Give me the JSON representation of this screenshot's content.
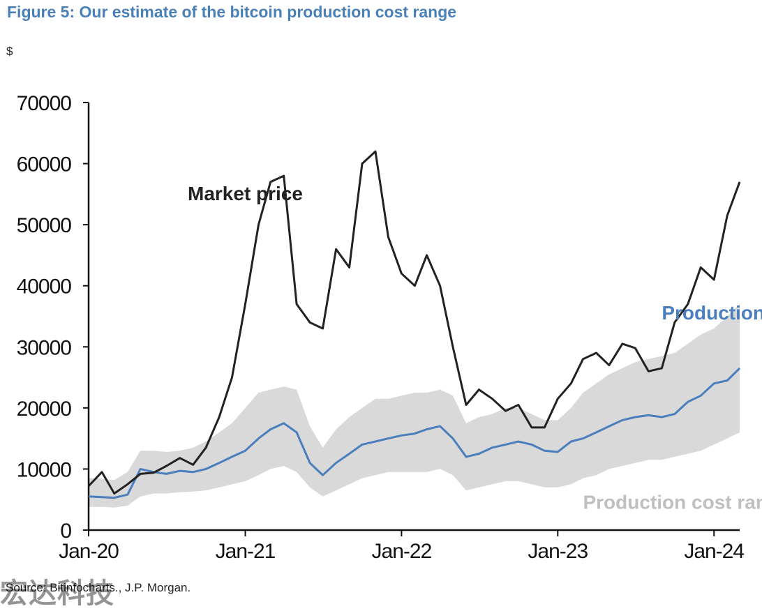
{
  "header": {
    "title": "Figure 5: Our estimate of the bitcoin production cost range",
    "unit": "$"
  },
  "footer": {
    "source": "Source: Bitinfocharts., J.P. Morgan.",
    "watermark": "宏达科技"
  },
  "colors": {
    "title": "#4a80b8",
    "market_price": "#222222",
    "production_cost": "#4a7ebd",
    "production_cost_range": "#d9d9d9"
  },
  "chart_data": {
    "type": "line",
    "title": "Figure 5: Our estimate of the bitcoin production cost range",
    "ylabel": "$",
    "ylim": [
      0,
      70000
    ],
    "yticks": [
      "0",
      "10000",
      "20000",
      "30000",
      "40000",
      "50000",
      "60000",
      "70000"
    ],
    "xlim": [
      "2020-01-01",
      "2024-03-01"
    ],
    "xticks": [
      {
        "label": "Jan-20",
        "date": "2020-01-01"
      },
      {
        "label": "Jan-21",
        "date": "2021-01-01"
      },
      {
        "label": "Jan-22",
        "date": "2022-01-01"
      },
      {
        "label": "Jan-23",
        "date": "2023-01-01"
      },
      {
        "label": "Jan-24",
        "date": "2024-01-01"
      }
    ],
    "grid": false,
    "series": [
      {
        "name": "Market price",
        "x": [
          "2020-01",
          "2020-02",
          "2020-03",
          "2020-04",
          "2020-05",
          "2020-06",
          "2020-07",
          "2020-08",
          "2020-09",
          "2020-10",
          "2020-11",
          "2020-12",
          "2021-01",
          "2021-02",
          "2021-03",
          "2021-04",
          "2021-05",
          "2021-06",
          "2021-07",
          "2021-08",
          "2021-09",
          "2021-10",
          "2021-11",
          "2021-12",
          "2022-01",
          "2022-02",
          "2022-03",
          "2022-04",
          "2022-05",
          "2022-06",
          "2022-07",
          "2022-08",
          "2022-09",
          "2022-10",
          "2022-11",
          "2022-12",
          "2023-01",
          "2023-02",
          "2023-03",
          "2023-04",
          "2023-05",
          "2023-06",
          "2023-07",
          "2023-08",
          "2023-09",
          "2023-10",
          "2023-11",
          "2023-12",
          "2024-01",
          "2024-02",
          "2024-03"
        ],
        "values": [
          7200,
          9500,
          6000,
          7500,
          9200,
          9400,
          10500,
          11800,
          10700,
          13500,
          18500,
          25000,
          37000,
          50000,
          57000,
          58000,
          37000,
          34000,
          33000,
          46000,
          43000,
          60000,
          62000,
          48000,
          42000,
          40000,
          45000,
          40000,
          30000,
          20500,
          23000,
          21500,
          19500,
          20500,
          16800,
          16800,
          21500,
          24000,
          28000,
          29000,
          27000,
          30500,
          29800,
          26000,
          26500,
          34000,
          37000,
          43000,
          41000,
          51500,
          57000
        ]
      },
      {
        "name": "Production cost",
        "x": [
          "2020-01",
          "2020-02",
          "2020-03",
          "2020-04",
          "2020-05",
          "2020-06",
          "2020-07",
          "2020-08",
          "2020-09",
          "2020-10",
          "2020-11",
          "2020-12",
          "2021-01",
          "2021-02",
          "2021-03",
          "2021-04",
          "2021-05",
          "2021-06",
          "2021-07",
          "2021-08",
          "2021-09",
          "2021-10",
          "2021-11",
          "2021-12",
          "2022-01",
          "2022-02",
          "2022-03",
          "2022-04",
          "2022-05",
          "2022-06",
          "2022-07",
          "2022-08",
          "2022-09",
          "2022-10",
          "2022-11",
          "2022-12",
          "2023-01",
          "2023-02",
          "2023-03",
          "2023-04",
          "2023-05",
          "2023-06",
          "2023-07",
          "2023-08",
          "2023-09",
          "2023-10",
          "2023-11",
          "2023-12",
          "2024-01",
          "2024-02",
          "2024-03"
        ],
        "values": [
          5500,
          5400,
          5300,
          5800,
          10000,
          9500,
          9200,
          9700,
          9500,
          10000,
          11000,
          12000,
          13000,
          15000,
          16500,
          17500,
          16000,
          11000,
          9000,
          11000,
          12500,
          14000,
          14500,
          15000,
          15500,
          15800,
          16500,
          17000,
          15000,
          12000,
          12500,
          13500,
          14000,
          14500,
          14000,
          13000,
          12800,
          14500,
          15000,
          16000,
          17000,
          18000,
          18500,
          18800,
          18500,
          19000,
          21000,
          22000,
          24000,
          24500,
          26500
        ]
      },
      {
        "name": "Production cost range",
        "type": "area",
        "x": [
          "2020-01",
          "2020-02",
          "2020-03",
          "2020-04",
          "2020-05",
          "2020-06",
          "2020-07",
          "2020-08",
          "2020-09",
          "2020-10",
          "2020-11",
          "2020-12",
          "2021-01",
          "2021-02",
          "2021-03",
          "2021-04",
          "2021-05",
          "2021-06",
          "2021-07",
          "2021-08",
          "2021-09",
          "2021-10",
          "2021-11",
          "2021-12",
          "2022-01",
          "2022-02",
          "2022-03",
          "2022-04",
          "2022-05",
          "2022-06",
          "2022-07",
          "2022-08",
          "2022-09",
          "2022-10",
          "2022-11",
          "2022-12",
          "2023-01",
          "2023-02",
          "2023-03",
          "2023-04",
          "2023-05",
          "2023-06",
          "2023-07",
          "2023-08",
          "2023-09",
          "2023-10",
          "2023-11",
          "2023-12",
          "2024-01",
          "2024-02",
          "2024-03"
        ],
        "low": [
          3800,
          3800,
          3700,
          4000,
          5500,
          6000,
          6000,
          6200,
          6300,
          6500,
          7000,
          7500,
          8000,
          9000,
          10000,
          10500,
          9500,
          7000,
          5500,
          6500,
          7500,
          8500,
          9000,
          9500,
          9500,
          9500,
          9500,
          10000,
          9000,
          6500,
          7000,
          7500,
          8000,
          8000,
          7500,
          7000,
          7000,
          7500,
          8500,
          9000,
          10000,
          10500,
          11000,
          11500,
          11500,
          12000,
          12500,
          13000,
          14000,
          15000,
          16000
        ],
        "high": [
          8500,
          8400,
          8200,
          9500,
          13000,
          13000,
          12800,
          13000,
          13500,
          14500,
          16000,
          17500,
          20000,
          22500,
          23000,
          23500,
          23000,
          17000,
          13500,
          16500,
          18500,
          20000,
          21500,
          21500,
          22000,
          22500,
          22500,
          23000,
          22000,
          17500,
          18500,
          19000,
          20000,
          20000,
          19000,
          18000,
          18000,
          20000,
          22500,
          24000,
          25500,
          26500,
          27500,
          28000,
          28500,
          29000,
          30500,
          32000,
          33000,
          35000,
          37000
        ]
      }
    ],
    "annotations": [
      {
        "text": "Market price",
        "anchor": "2021-01",
        "value": 54000
      },
      {
        "text": "Production cost",
        "anchor": "2023-09",
        "value": 34500
      },
      {
        "text": "Production cost range",
        "anchor": "2023-03",
        "value": 3500
      }
    ]
  }
}
